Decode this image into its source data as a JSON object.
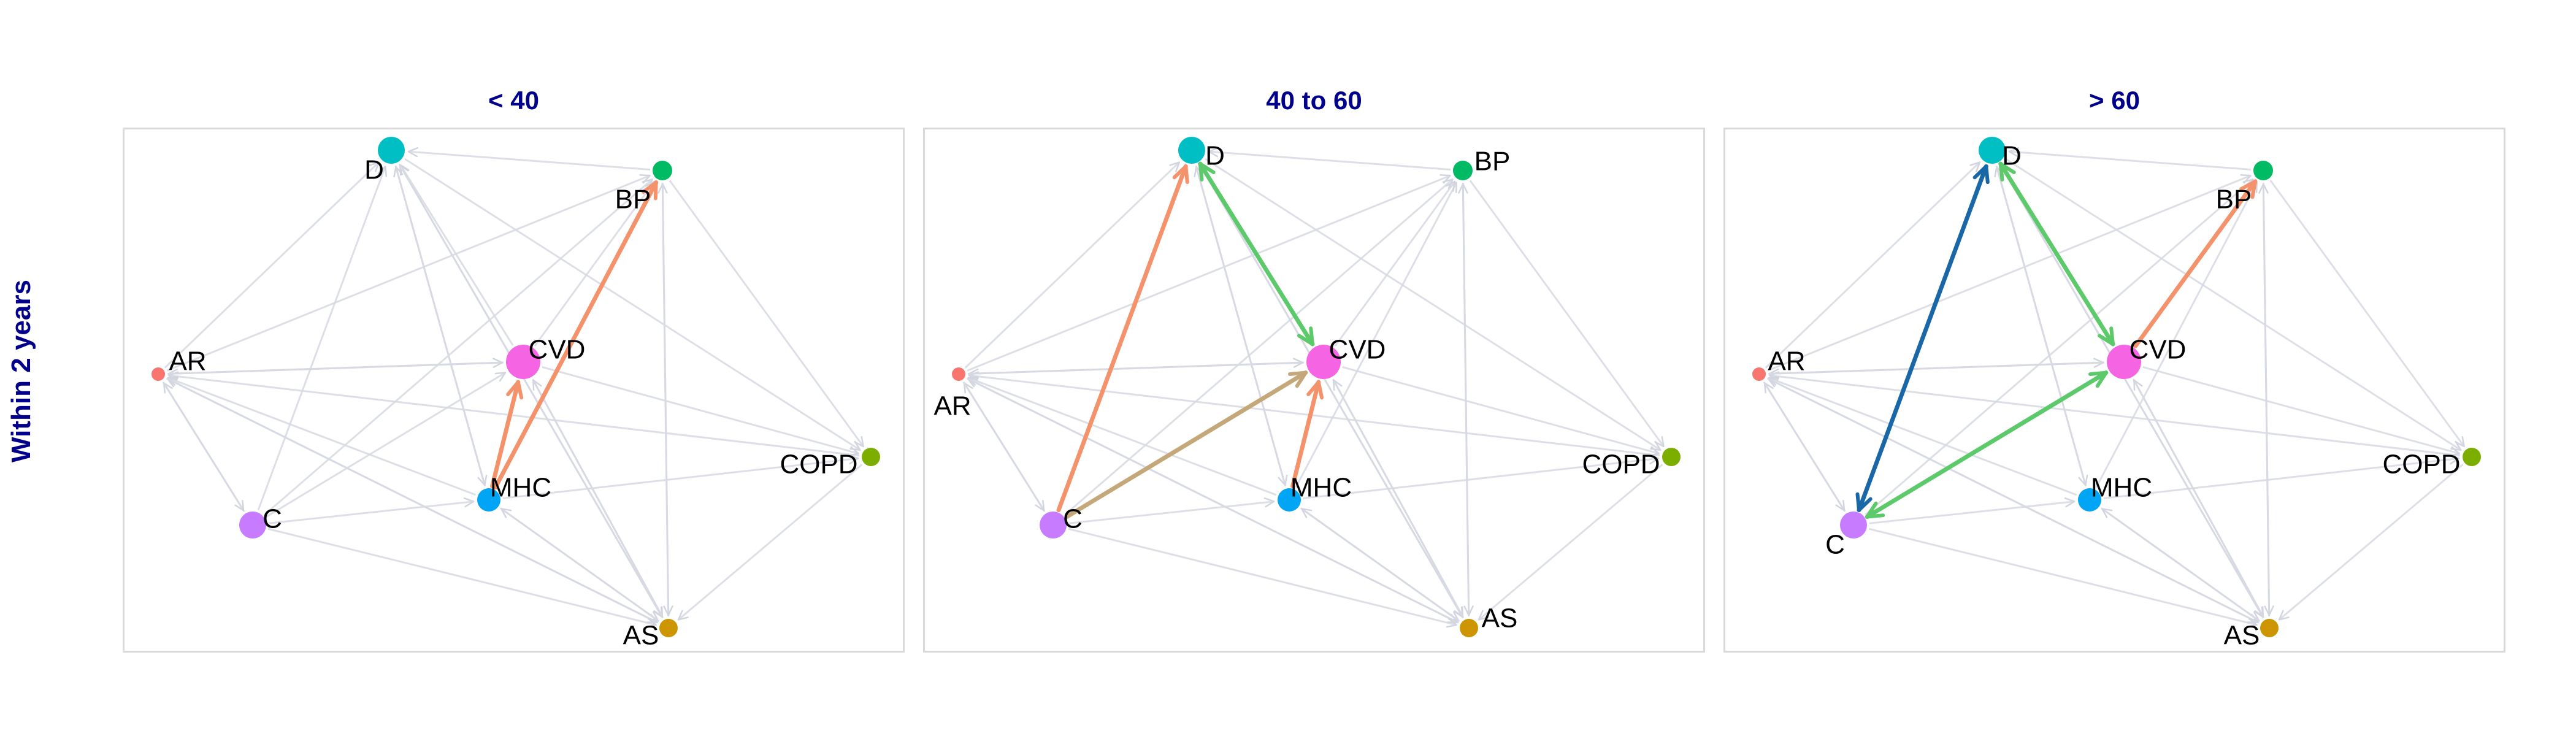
{
  "row_label": "Within 2 years",
  "panels": [
    {
      "title": "< 40",
      "nodes": [
        {
          "id": "D",
          "label": "D",
          "color": "#00BFC4"
        },
        {
          "id": "BP",
          "label": "BP",
          "color": "#00BA64"
        },
        {
          "id": "AR",
          "label": "AR",
          "color": "#F8766D"
        },
        {
          "id": "CVD",
          "label": "CVD",
          "color": "#F564E3"
        },
        {
          "id": "COPD",
          "label": "COPD",
          "color": "#7CAE00"
        },
        {
          "id": "MHC",
          "label": "MHC",
          "color": "#00A5F5"
        },
        {
          "id": "C",
          "label": "C",
          "color": "#C77CFF"
        },
        {
          "id": "AS",
          "label": "AS",
          "color": "#CD9600"
        }
      ],
      "highlighted_edges": [
        {
          "from": "MHC",
          "to": "CVD",
          "color": "#F4926B"
        },
        {
          "from": "MHC",
          "to": "BP",
          "color": "#F4926B"
        }
      ]
    },
    {
      "title": "40 to 60",
      "nodes": [
        {
          "id": "D",
          "label": "D",
          "color": "#00BFC4"
        },
        {
          "id": "BP",
          "label": "BP",
          "color": "#00BA64"
        },
        {
          "id": "AR",
          "label": "AR",
          "color": "#F8766D"
        },
        {
          "id": "CVD",
          "label": "CVD",
          "color": "#F564E3"
        },
        {
          "id": "COPD",
          "label": "COPD",
          "color": "#7CAE00"
        },
        {
          "id": "MHC",
          "label": "MHC",
          "color": "#00A5F5"
        },
        {
          "id": "C",
          "label": "C",
          "color": "#C77CFF"
        },
        {
          "id": "AS",
          "label": "AS",
          "color": "#CD9600"
        }
      ],
      "highlighted_edges": [
        {
          "from": "C",
          "to": "D",
          "color": "#F4926B"
        },
        {
          "from": "D",
          "to": "CVD",
          "color": "#5CC96A",
          "bidirectional": true
        },
        {
          "from": "MHC",
          "to": "CVD",
          "color": "#F4926B"
        },
        {
          "from": "C",
          "to": "CVD",
          "color": "#C4A87A"
        }
      ]
    },
    {
      "title": "> 60",
      "nodes": [
        {
          "id": "D",
          "label": "D",
          "color": "#00BFC4"
        },
        {
          "id": "BP",
          "label": "BP",
          "color": "#00BA64"
        },
        {
          "id": "AR",
          "label": "AR",
          "color": "#F8766D"
        },
        {
          "id": "CVD",
          "label": "CVD",
          "color": "#F564E3"
        },
        {
          "id": "COPD",
          "label": "COPD",
          "color": "#7CAE00"
        },
        {
          "id": "MHC",
          "label": "MHC",
          "color": "#00A5F5"
        },
        {
          "id": "C",
          "label": "C",
          "color": "#C77CFF"
        },
        {
          "id": "AS",
          "label": "AS",
          "color": "#CD9600"
        }
      ],
      "highlighted_edges": [
        {
          "from": "C",
          "to": "D",
          "color": "#1A67A8",
          "bidirectional": true
        },
        {
          "from": "D",
          "to": "CVD",
          "color": "#5CC96A",
          "bidirectional": true
        },
        {
          "from": "C",
          "to": "CVD",
          "color": "#5CC96A",
          "bidirectional": true
        },
        {
          "from": "CVD",
          "to": "BP",
          "color": "#F4926B"
        }
      ]
    }
  ]
}
